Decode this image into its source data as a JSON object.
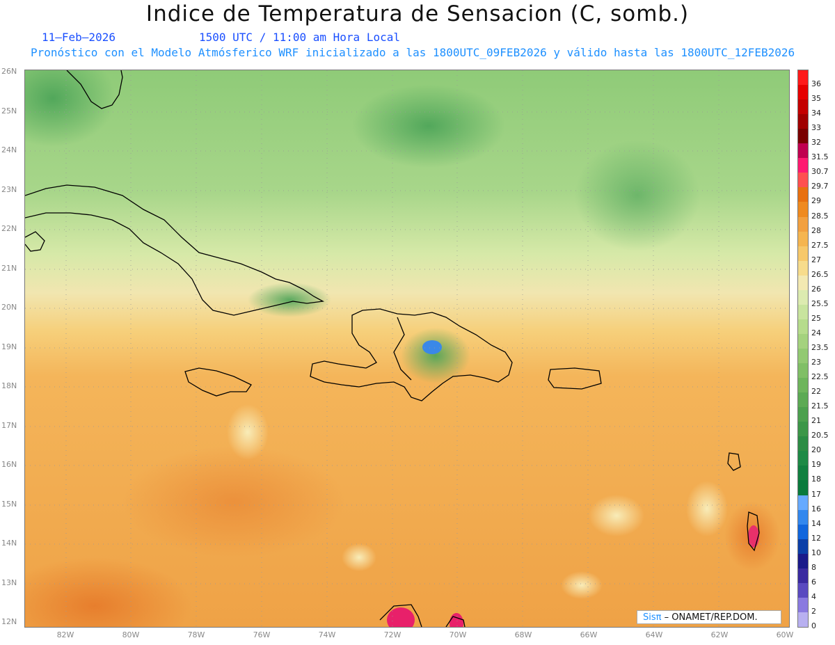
{
  "title": "Indice de Temperatura de Sensacion (C, somb.)",
  "date": "11–Feb–2026",
  "valid_time": "1500 UTC / 11:00 am Hora Local",
  "model_info": "Pronóstico con el Modelo Atmósferico WRF inicializado a las 1800UTC_09FEB2026 y válido hasta las  1800UTC_12FEB2026",
  "credit": {
    "logo": "Sisπ",
    "text": "– ONAMET/REP.DOM."
  },
  "lat_labels": [
    "26N",
    "25N",
    "24N",
    "23N",
    "22N",
    "21N",
    "20N",
    "19N",
    "18N",
    "17N",
    "16N",
    "15N",
    "14N",
    "13N",
    "12N"
  ],
  "lon_labels": [
    "82W",
    "80W",
    "78W",
    "76W",
    "74W",
    "72W",
    "70W",
    "68W",
    "66W",
    "64W",
    "62W",
    "60W"
  ],
  "colorbar": {
    "labels": [
      "36",
      "35",
      "34",
      "33",
      "32",
      "31.5",
      "30.7",
      "29.7",
      "29",
      "28.5",
      "28",
      "27.5",
      "27",
      "26.5",
      "26",
      "25.5",
      "25",
      "24",
      "23.5",
      "23",
      "22.5",
      "22",
      "21.5",
      "21",
      "20.5",
      "20",
      "19",
      "18",
      "17",
      "16",
      "14",
      "12",
      "10",
      "8",
      "6",
      "4",
      "2",
      "0"
    ],
    "colors": [
      "#ff1a1a",
      "#e60000",
      "#c40000",
      "#a00000",
      "#7a0000",
      "#c00050",
      "#ff1a70",
      "#ff5050",
      "#e87010",
      "#ef8a20",
      "#f2a040",
      "#f5b550",
      "#f7c86a",
      "#f7dc8c",
      "#f3e9b2",
      "#dcebb0",
      "#c8e49e",
      "#b6dc8c",
      "#a4d27e",
      "#92c972",
      "#80bf66",
      "#6eb55c",
      "#5caa54",
      "#4ca04e",
      "#3c9648",
      "#2c8c44",
      "#1e8a46",
      "#128040",
      "#0a7a3c",
      "#66aaff",
      "#3388ee",
      "#1166dd",
      "#0b3fa8",
      "#1a1a8a",
      "#3a2aa0",
      "#5a4ac0",
      "#8a7ae0",
      "#b8b0f0"
    ]
  }
}
